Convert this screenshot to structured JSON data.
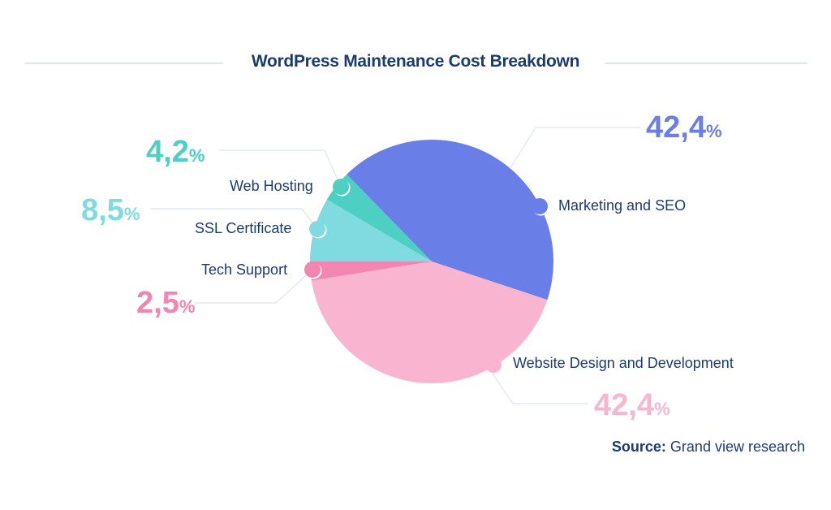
{
  "chart_data": {
    "type": "pie",
    "title": "WordPress Maintenance Cost Breakdown",
    "start": "left",
    "direction": "clockwise",
    "slices": [
      {
        "label": "SSL Certificate",
        "value": 8.5,
        "display": "8,5",
        "color": "#7fdbe0"
      },
      {
        "label": "Web Hosting",
        "value": 4.2,
        "display": "4,2",
        "color": "#4ecfc3"
      },
      {
        "label": "Marketing and SEO",
        "value": 42.4,
        "display": "42,4",
        "color": "#6a7ee8"
      },
      {
        "label": "Website Design and Development",
        "value": 42.4,
        "display": "42,4",
        "color": "#f9b5cf"
      },
      {
        "label": "Tech Support",
        "value": 2.5,
        "display": "2,5",
        "color": "#f386b0"
      }
    ],
    "unit": "%",
    "source_label": "Source:",
    "source": "Grand view research"
  }
}
